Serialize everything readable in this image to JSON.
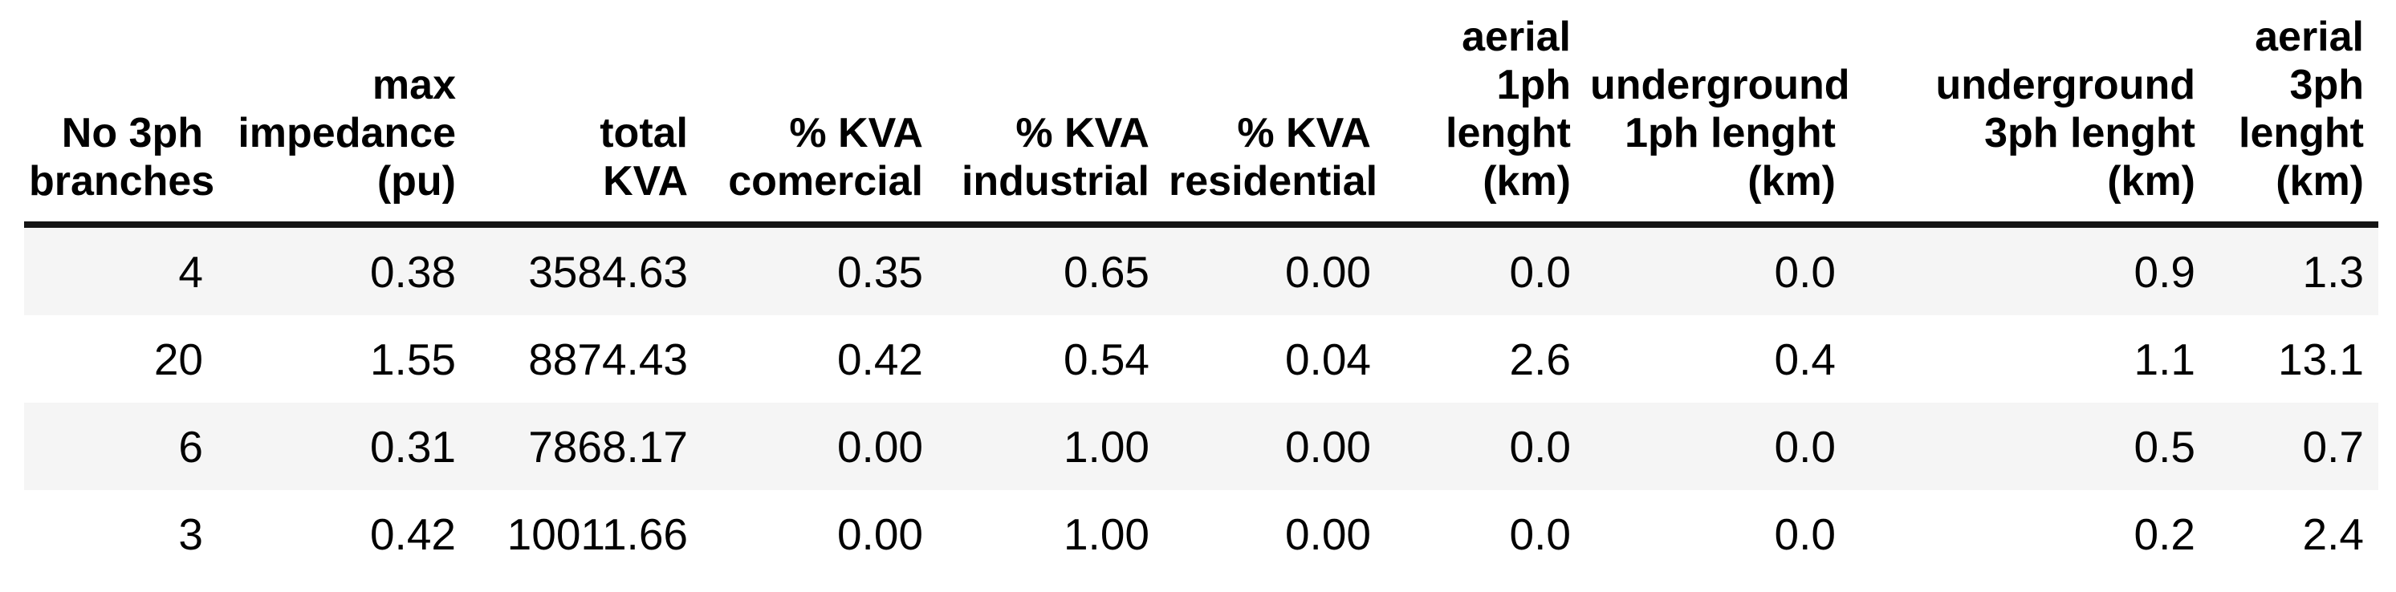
{
  "style": {
    "stripe_color": "#f5f5f5",
    "header_rule_color": "#141414",
    "text_color": "#000000",
    "background_color": "#ffffff"
  },
  "table": {
    "columns": [
      {
        "id": "no-3ph-branches",
        "label": "No 3ph\nbranches"
      },
      {
        "id": "max-impedance-pu",
        "label": "max\nimpedance\n(pu)"
      },
      {
        "id": "total-kva",
        "label": "total\nKVA"
      },
      {
        "id": "pct-kva-comercial",
        "label": "% KVA\ncomercial"
      },
      {
        "id": "pct-kva-industrial",
        "label": "% KVA\nindustrial"
      },
      {
        "id": "pct-kva-residential",
        "label": "% KVA\nresidential"
      },
      {
        "id": "aerial-1ph-lenght-km",
        "label": "aerial\n1ph\nlenght\n(km)"
      },
      {
        "id": "underground-1ph-lenght-km",
        "label": "underground\n1ph lenght\n(km)"
      },
      {
        "id": "underground-3ph-lenght-km",
        "label": "underground\n3ph lenght\n(km)"
      },
      {
        "id": "aerial-3ph-lenght-km",
        "label": "aerial\n3ph\nlenght\n(km)"
      }
    ],
    "rows": [
      [
        "4",
        "0.38",
        "3584.63",
        "0.35",
        "0.65",
        "0.00",
        "0.0",
        "0.0",
        "0.9",
        "1.3"
      ],
      [
        "20",
        "1.55",
        "8874.43",
        "0.42",
        "0.54",
        "0.04",
        "2.6",
        "0.4",
        "1.1",
        "13.1"
      ],
      [
        "6",
        "0.31",
        "7868.17",
        "0.00",
        "1.00",
        "0.00",
        "0.0",
        "0.0",
        "0.5",
        "0.7"
      ],
      [
        "3",
        "0.42",
        "10011.66",
        "0.00",
        "1.00",
        "0.00",
        "0.0",
        "0.0",
        "0.2",
        "2.4"
      ]
    ]
  },
  "chart_data": {
    "type": "table",
    "title": "",
    "columns": [
      "No 3ph branches",
      "max impedance (pu)",
      "total KVA",
      "% KVA comercial",
      "% KVA industrial",
      "% KVA residential",
      "aerial 1ph lenght (km)",
      "underground 1ph lenght (km)",
      "underground 3ph lenght (km)",
      "aerial 3ph lenght (km)"
    ],
    "rows": [
      [
        4,
        0.38,
        3584.63,
        0.35,
        0.65,
        0.0,
        0.0,
        0.0,
        0.9,
        1.3
      ],
      [
        20,
        1.55,
        8874.43,
        0.42,
        0.54,
        0.04,
        2.6,
        0.4,
        1.1,
        13.1
      ],
      [
        6,
        0.31,
        7868.17,
        0.0,
        1.0,
        0.0,
        0.0,
        0.0,
        0.5,
        0.7
      ],
      [
        3,
        0.42,
        10011.66,
        0.0,
        1.0,
        0.0,
        0.0,
        0.0,
        0.2,
        2.4
      ]
    ],
    "layout": {
      "header_align": "right",
      "cell_align": "right",
      "row_striping": "odd-rows-gray",
      "grid": false
    }
  }
}
